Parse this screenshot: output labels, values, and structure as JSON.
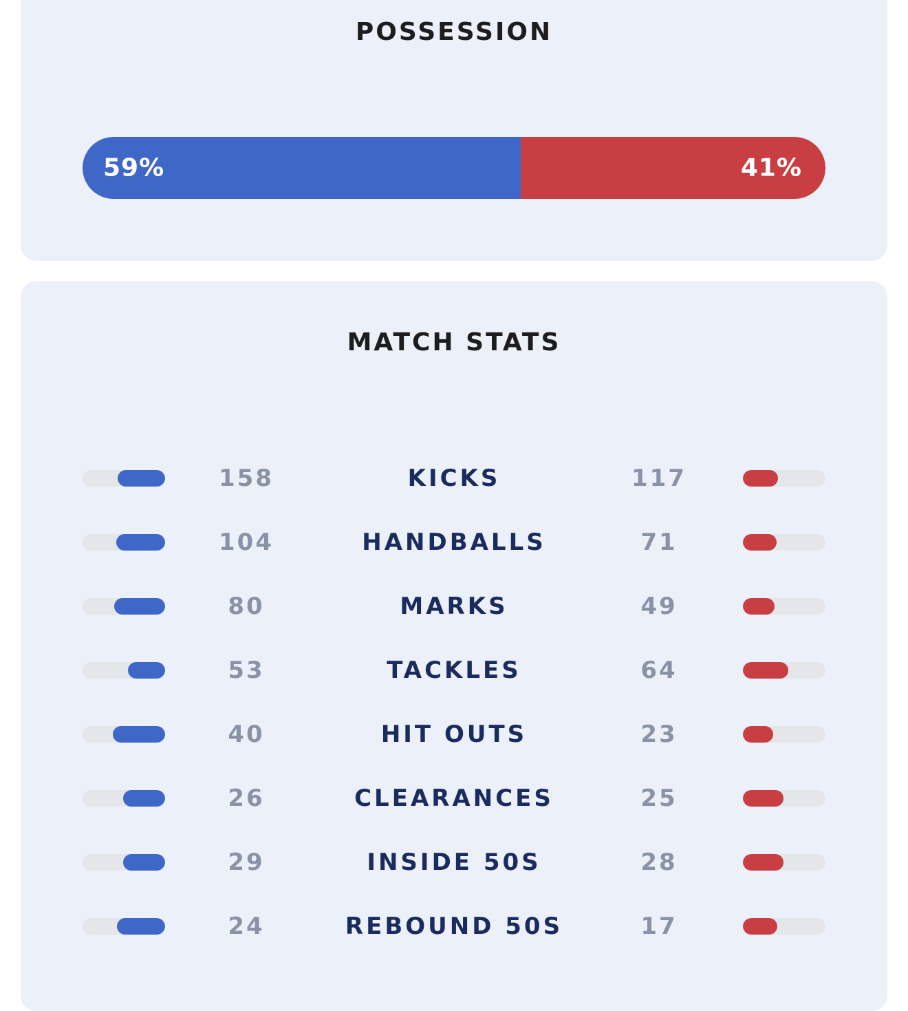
{
  "possession": {
    "title": "POSSESSION",
    "home_percent": 59,
    "away_percent": 41,
    "home_label": "59%",
    "away_label": "41%",
    "home_color": "#3e67c7",
    "away_color": "#c83e42"
  },
  "match_stats": {
    "title": "MATCH STATS",
    "rows": [
      {
        "label": "KICKS",
        "home": "158",
        "away": "117"
      },
      {
        "label": "HANDBALLS",
        "home": "104",
        "away": "71"
      },
      {
        "label": "MARKS",
        "home": "80",
        "away": "49"
      },
      {
        "label": "TACKLES",
        "home": "53",
        "away": "64"
      },
      {
        "label": "HIT OUTS",
        "home": "40",
        "away": "23"
      },
      {
        "label": "CLEARANCES",
        "home": "26",
        "away": "25"
      },
      {
        "label": "INSIDE 50S",
        "home": "29",
        "away": "28"
      },
      {
        "label": "REBOUND 50S",
        "home": "24",
        "away": "17"
      }
    ]
  }
}
